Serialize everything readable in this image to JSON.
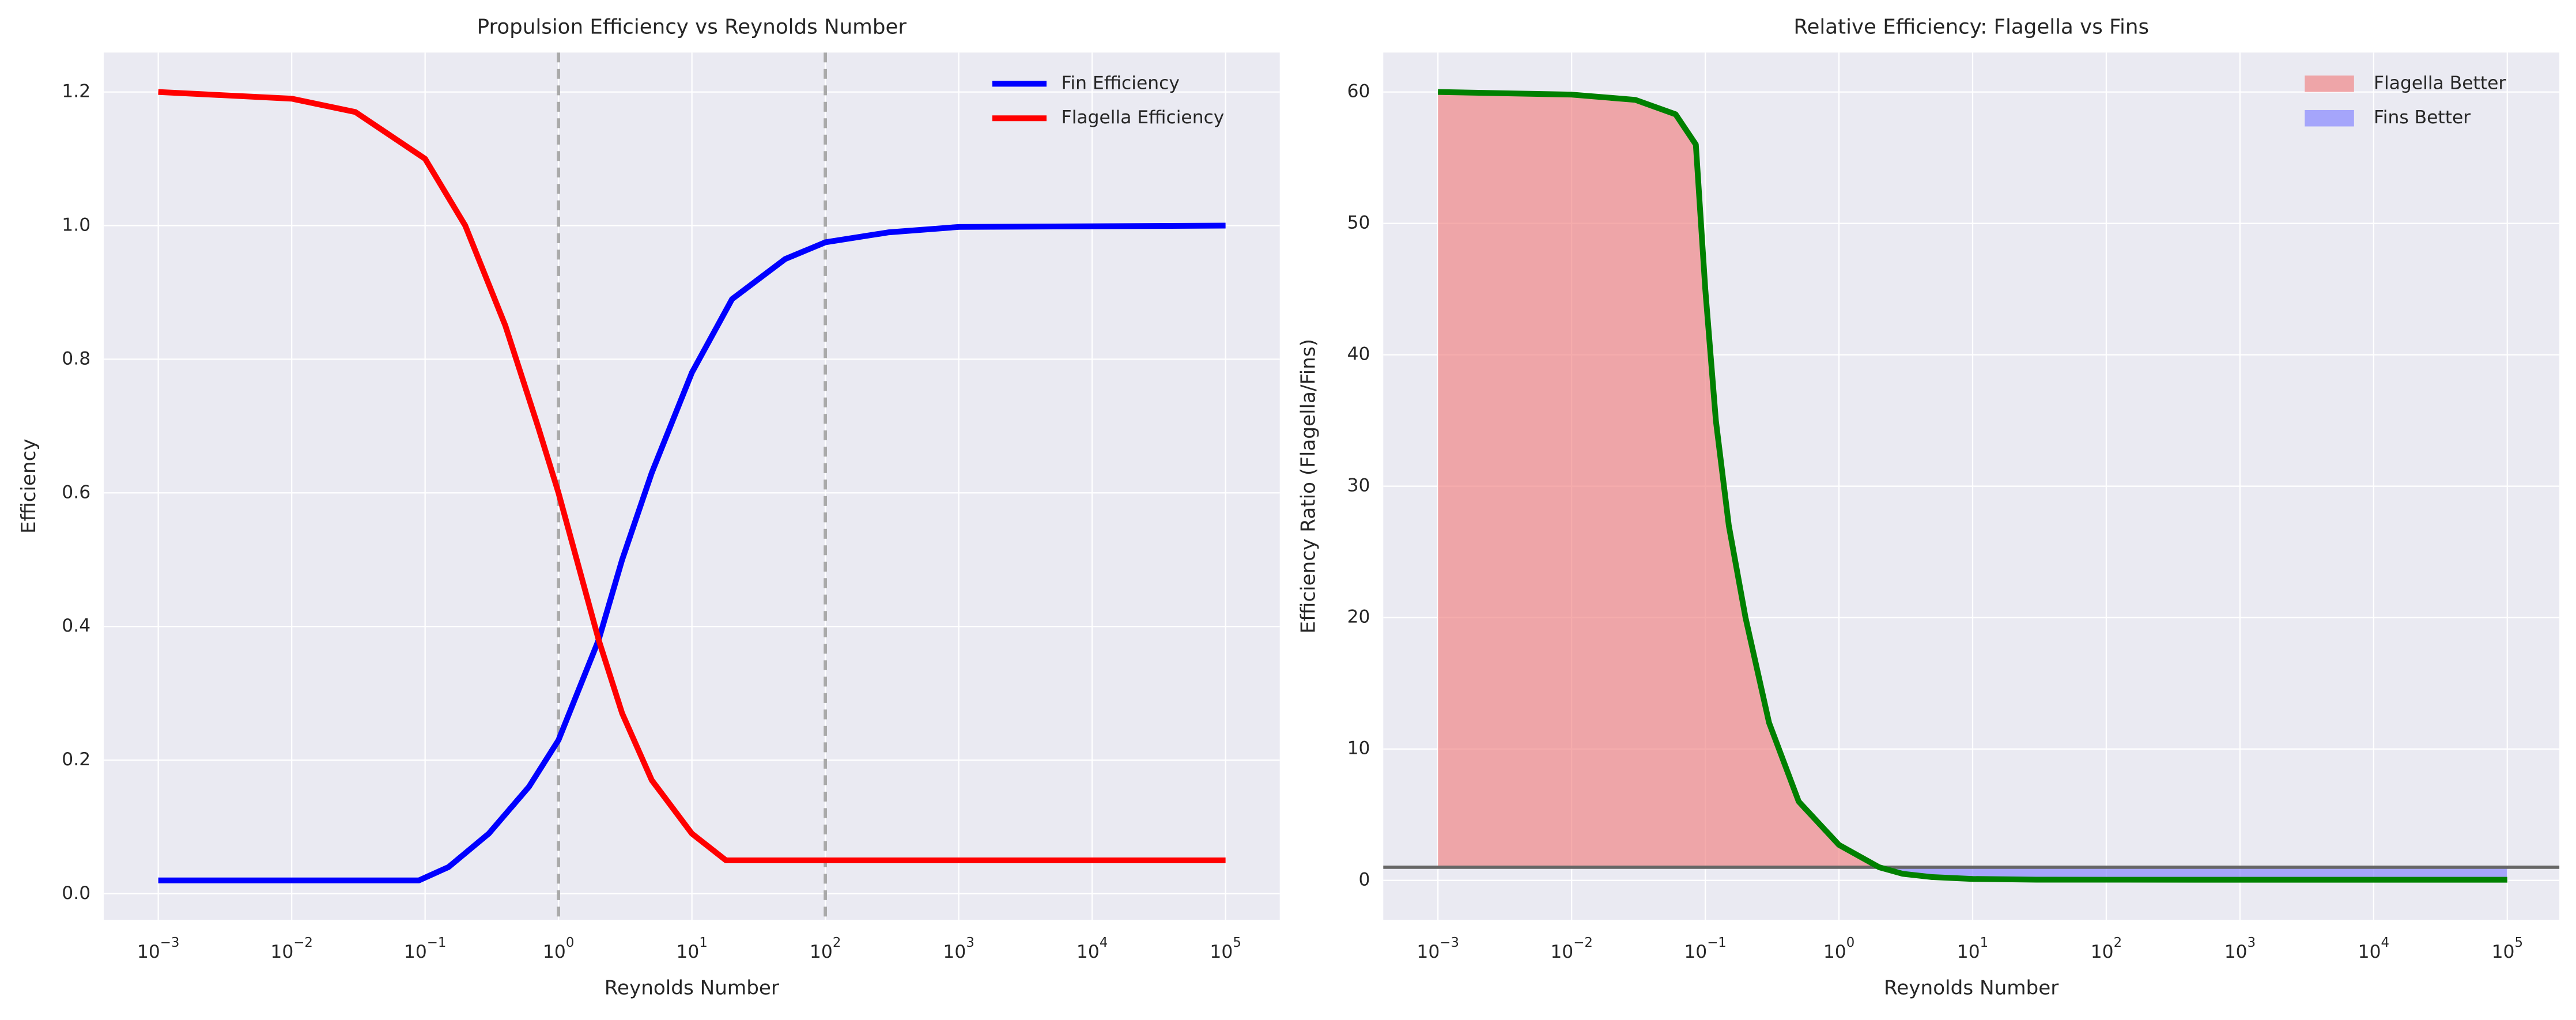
{
  "chart_data": [
    {
      "type": "line",
      "title": "Propulsion Efficiency vs Reynolds Number",
      "xlabel": "Reynolds Number",
      "ylabel": "Efficiency",
      "xscale": "log",
      "grid": true,
      "legend": "upper right",
      "xlim": [
        0.00039,
        255000
      ],
      "ylim": [
        -0.039,
        1.259
      ],
      "xticks": [
        {
          "value": 0.001,
          "label": "10−3"
        },
        {
          "value": 0.01,
          "label": "10−2"
        },
        {
          "value": 0.1,
          "label": "10−1"
        },
        {
          "value": 1,
          "label": "100"
        },
        {
          "value": 10,
          "label": "101"
        },
        {
          "value": 100,
          "label": "102"
        },
        {
          "value": 1000,
          "label": "103"
        },
        {
          "value": 10000,
          "label": "104"
        },
        {
          "value": 100000,
          "label": "105"
        }
      ],
      "yticks": [
        {
          "value": 0,
          "label": "0.0"
        },
        0.2,
        0.4,
        0.6,
        0.8,
        {
          "value": 1,
          "label": "1.0"
        },
        1.2
      ],
      "vlines": [
        1,
        100
      ],
      "series": [
        {
          "name": "Fin Efficiency",
          "color": "#0000ff",
          "x": [
            0.001,
            0.01,
            0.09,
            0.15,
            0.3,
            0.6,
            1,
            2,
            3,
            5,
            10,
            20,
            50,
            100,
            300,
            1000,
            100000
          ],
          "values": [
            0.02,
            0.02,
            0.02,
            0.04,
            0.09,
            0.16,
            0.23,
            0.38,
            0.5,
            0.63,
            0.78,
            0.89,
            0.95,
            0.975,
            0.99,
            0.998,
            1.0
          ]
        },
        {
          "name": "Flagella Efficiency",
          "color": "#ff0000",
          "x": [
            0.001,
            0.01,
            0.03,
            0.1,
            0.2,
            0.4,
            0.7,
            1,
            2,
            3,
            5,
            10,
            18,
            100,
            1000,
            100000
          ],
          "values": [
            1.2,
            1.19,
            1.17,
            1.1,
            1.0,
            0.85,
            0.7,
            0.6,
            0.38,
            0.27,
            0.17,
            0.09,
            0.05,
            0.05,
            0.05,
            0.05
          ]
        }
      ]
    },
    {
      "type": "area",
      "title": "Relative Efficiency: Flagella vs Fins",
      "xlabel": "Reynolds Number",
      "ylabel": "Efficiency Ratio (Flagella/Fins)",
      "xscale": "log",
      "grid": true,
      "legend": "upper right",
      "xlim": [
        0.00039,
        245000
      ],
      "ylim": [
        -3,
        63
      ],
      "xticks": [
        {
          "value": 0.001,
          "label": "10−3"
        },
        {
          "value": 0.01,
          "label": "10−2"
        },
        {
          "value": 0.1,
          "label": "10−1"
        },
        {
          "value": 1,
          "label": "100"
        },
        {
          "value": 10,
          "label": "101"
        },
        {
          "value": 100,
          "label": "102"
        },
        {
          "value": 1000,
          "label": "103"
        },
        {
          "value": 10000,
          "label": "104"
        },
        {
          "value": 100000,
          "label": "105"
        }
      ],
      "yticks": [
        0,
        10,
        20,
        30,
        40,
        50,
        60
      ],
      "hline": 1,
      "line_color": "#008000",
      "x": [
        0.001,
        0.01,
        0.03,
        0.06,
        0.085,
        0.1,
        0.12,
        0.15,
        0.2,
        0.3,
        0.5,
        1,
        2,
        3,
        5,
        10,
        30,
        100,
        1000,
        10000,
        100000
      ],
      "values": [
        60,
        59.8,
        59.4,
        58.3,
        56,
        45,
        35,
        27,
        20,
        12,
        6,
        2.7,
        1.0,
        0.5,
        0.25,
        0.11,
        0.055,
        0.051,
        0.05,
        0.05,
        0.05
      ],
      "fills": [
        {
          "name": "Flagella Better",
          "color": "#f08080"
        },
        {
          "name": "Fins Better",
          "color": "#8080ff"
        }
      ]
    }
  ]
}
